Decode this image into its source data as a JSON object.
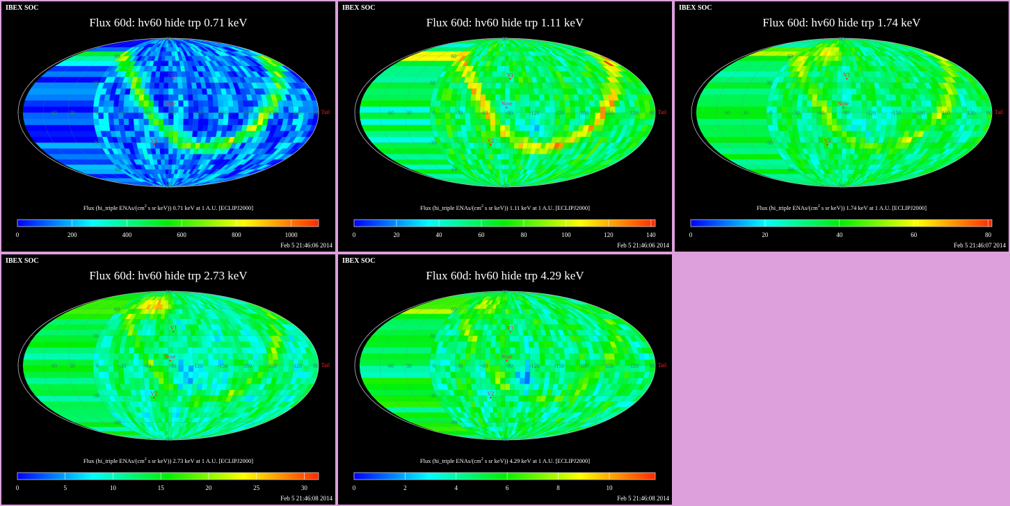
{
  "header_label": "IBEX SOC",
  "map_labels": {
    "equator_lons": [
      "60",
      "30",
      "0",
      "-30",
      "-60",
      "-90",
      "-120",
      "-150",
      "180",
      "150",
      "120",
      "90"
    ],
    "lats": [
      "90",
      "60",
      "30",
      "-30",
      "-60",
      "-90"
    ],
    "markers": [
      {
        "name": "V1",
        "lon": 263,
        "lat": 34
      },
      {
        "name": "Nose",
        "lon": 268,
        "lat": 5
      },
      {
        "name": "V2",
        "lon": 289,
        "lat": -32
      },
      {
        "name": "Tail",
        "lon": 90,
        "lat": 0
      }
    ]
  },
  "colors": {
    "panel_bg": "#000000",
    "page_bg": "#dda0dd",
    "label": "#1f8f5f",
    "marker": "#ff2020"
  },
  "chart_data": [
    {
      "type": "heatmap",
      "title": "Flux 60d: hv60 hide trp 0.71 keV",
      "caption_pre": "Flux (hi_triple ENAs/(cm",
      "caption_sup": "2",
      "caption_post": " s sr keV)) 0.71 keV at 1 A.U. [ECLIPJ2000]",
      "ticks": [
        "0",
        "200",
        "400",
        "600",
        "800",
        "1000"
      ],
      "tick_values": [
        0,
        200,
        400,
        600,
        800,
        1000
      ],
      "range": [
        0,
        1100
      ],
      "timestamp": "Feb  5 21:46:06 2014"
    },
    {
      "type": "heatmap",
      "title": "Flux 60d: hv60 hide trp 1.11 keV",
      "caption_pre": "Flux (hi_triple ENAs/(cm",
      "caption_sup": "2",
      "caption_post": " s sr keV)) 1.11 keV at 1 A.U. [ECLIPJ2000]",
      "ticks": [
        "0",
        "20",
        "40",
        "60",
        "80",
        "100",
        "120",
        "140"
      ],
      "tick_values": [
        0,
        20,
        40,
        60,
        80,
        100,
        120,
        140
      ],
      "range": [
        0,
        142
      ],
      "timestamp": "Feb  5 21:46:06 2014"
    },
    {
      "type": "heatmap",
      "title": "Flux 60d: hv60 hide trp 1.74 keV",
      "caption_pre": "Flux (hi_triple ENAs/(cm",
      "caption_sup": "2",
      "caption_post": " s sr keV)) 1.74 keV at 1 A.U. [ECLIPJ2000]",
      "ticks": [
        "0",
        "20",
        "40",
        "60",
        "80"
      ],
      "tick_values": [
        0,
        20,
        40,
        60,
        80
      ],
      "range": [
        0,
        81
      ],
      "timestamp": "Feb  5 21:46:07 2014"
    },
    {
      "type": "heatmap",
      "title": "Flux 60d: hv60 hide trp 2.73 keV",
      "caption_pre": "Flux (hi_triple ENAs/(cm",
      "caption_sup": "2",
      "caption_post": " s sr keV)) 2.73 keV at 1 A.U. [ECLIPJ2000]",
      "ticks": [
        "0",
        "5",
        "10",
        "15",
        "20",
        "25",
        "30"
      ],
      "tick_values": [
        0,
        5,
        10,
        15,
        20,
        25,
        30
      ],
      "range": [
        0,
        31.5
      ],
      "timestamp": "Feb  5 21:46:08 2014"
    },
    {
      "type": "heatmap",
      "title": "Flux 60d: hv60 hide trp 4.29 keV",
      "caption_pre": "Flux (hi_triple ENAs/(cm",
      "caption_sup": "2",
      "caption_post": " s sr keV)) 4.29 keV at 1 A.U. [ECLIPJ2000]",
      "ticks": [
        "0",
        "2",
        "4",
        "6",
        "8",
        "10"
      ],
      "tick_values": [
        0,
        2,
        4,
        6,
        8,
        10
      ],
      "range": [
        0,
        11.8
      ],
      "timestamp": "Feb  5 21:46:08 2014"
    }
  ]
}
